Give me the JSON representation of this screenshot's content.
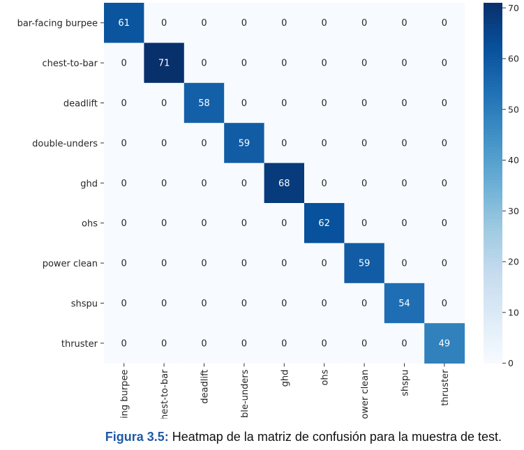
{
  "chart_data": {
    "type": "heatmap",
    "title": "",
    "xlabel": "",
    "ylabel": "",
    "rows": [
      "bar-facing burpee",
      "chest-to-bar",
      "deadlift",
      "double-unders",
      "ghd",
      "ohs",
      "power clean",
      "shspu",
      "thruster"
    ],
    "cols": [
      "bar-facing burpee",
      "chest-to-bar",
      "deadlift",
      "double-unders",
      "ghd",
      "ohs",
      "power clean",
      "shspu",
      "thruster"
    ],
    "values": [
      [
        61,
        0,
        0,
        0,
        0,
        0,
        0,
        0,
        0
      ],
      [
        0,
        71,
        0,
        0,
        0,
        0,
        0,
        0,
        0
      ],
      [
        0,
        0,
        58,
        0,
        0,
        0,
        0,
        0,
        0
      ],
      [
        0,
        0,
        0,
        59,
        0,
        0,
        0,
        0,
        0
      ],
      [
        0,
        0,
        0,
        0,
        68,
        0,
        0,
        0,
        0
      ],
      [
        0,
        0,
        0,
        0,
        0,
        62,
        0,
        0,
        0
      ],
      [
        0,
        0,
        0,
        0,
        0,
        0,
        59,
        0,
        0
      ],
      [
        0,
        0,
        0,
        0,
        0,
        0,
        0,
        54,
        0
      ],
      [
        0,
        0,
        0,
        0,
        0,
        0,
        0,
        0,
        49
      ]
    ],
    "colorbar": {
      "min": 0,
      "max": 71,
      "ticks": [
        0,
        10,
        20,
        30,
        40,
        50,
        60,
        70
      ]
    },
    "colormap": "Blues",
    "colors": {
      "low": "#f7fbff",
      "high": "#08306b"
    }
  },
  "caption": {
    "label": "Figura 3.5:",
    "text": " Heatmap de la matriz de confusión para la muestra de test."
  }
}
